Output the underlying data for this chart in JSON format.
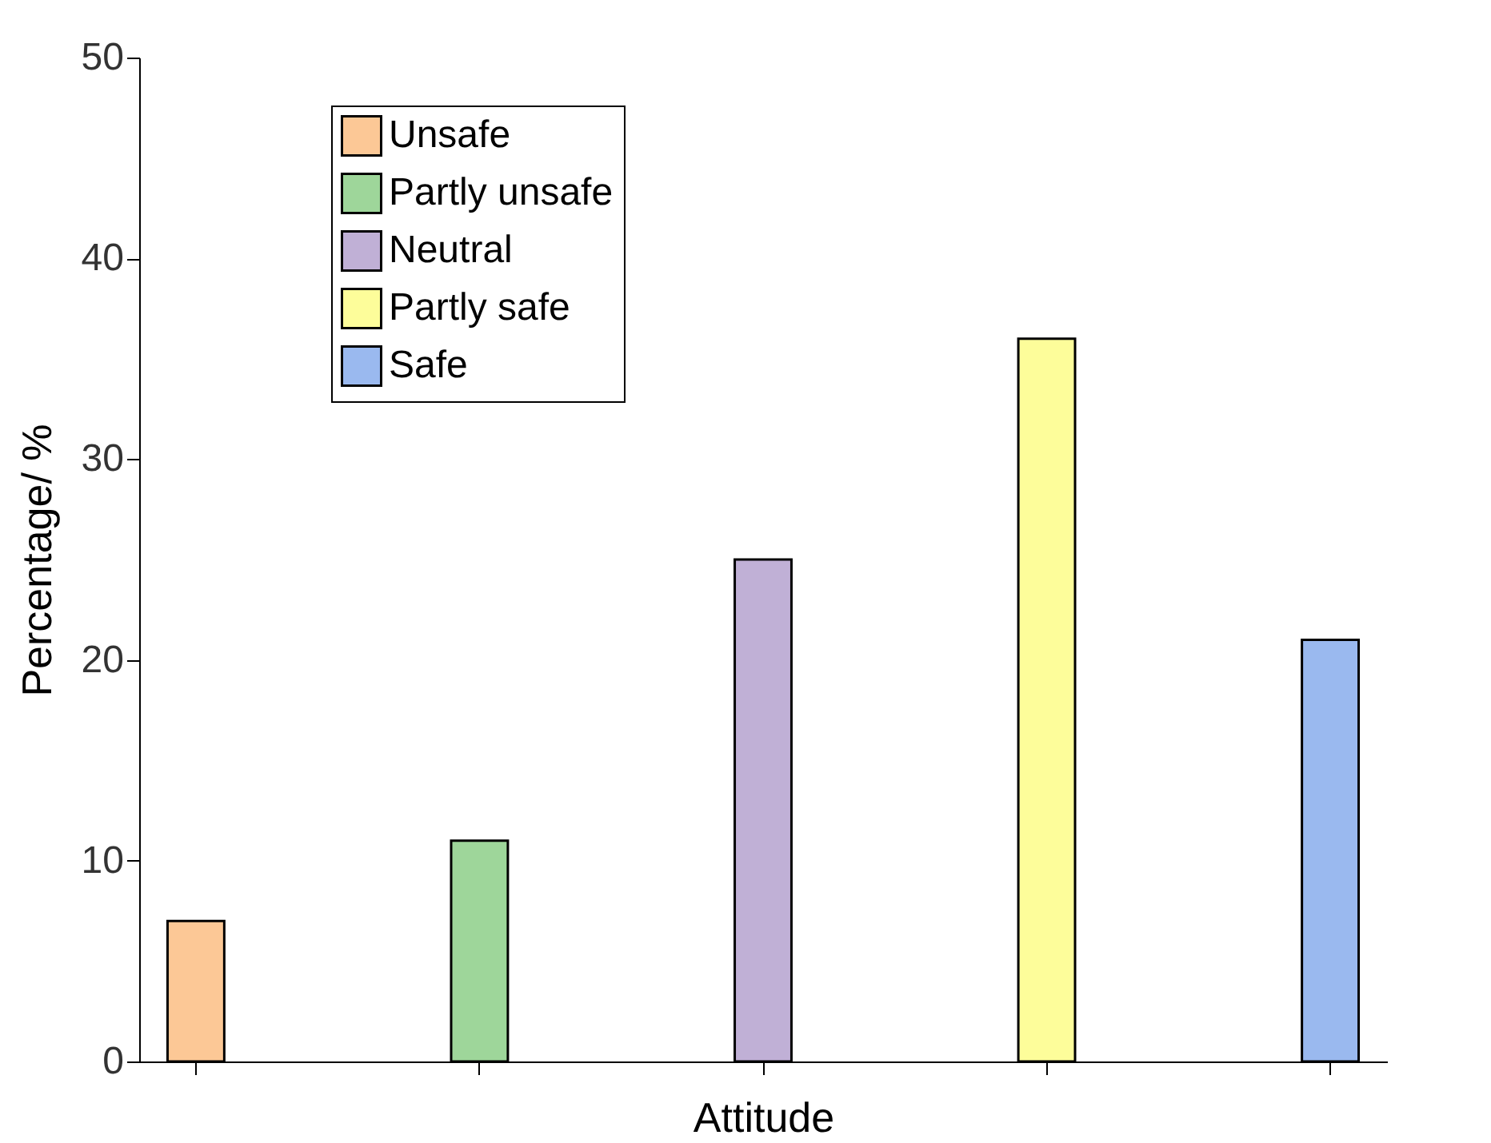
{
  "chart_data": {
    "type": "bar",
    "xlabel": "Attitude",
    "ylabel": "Percentage/ %",
    "categories": [
      null,
      null,
      null,
      null,
      null
    ],
    "series": [
      {
        "name": "Unsafe",
        "color": "#fcc896",
        "values": [
          7,
          null,
          null,
          null,
          null
        ]
      },
      {
        "name": "Partly unsafe",
        "color": "#9ed69a",
        "values": [
          null,
          11,
          null,
          null,
          null
        ]
      },
      {
        "name": "Neutral",
        "color": "#c0b0d6",
        "values": [
          null,
          null,
          25,
          null,
          null
        ]
      },
      {
        "name": "Partly safe",
        "color": "#fdfd9a",
        "values": [
          null,
          null,
          null,
          36,
          null
        ]
      },
      {
        "name": "Safe",
        "color": "#9ab9ef",
        "values": [
          null,
          null,
          null,
          null,
          21
        ]
      }
    ],
    "ylim": [
      0,
      50
    ],
    "yticks": [
      0,
      10,
      20,
      30,
      40,
      50
    ],
    "grid": false,
    "legend": "top left",
    "tick_labels": "y"
  }
}
